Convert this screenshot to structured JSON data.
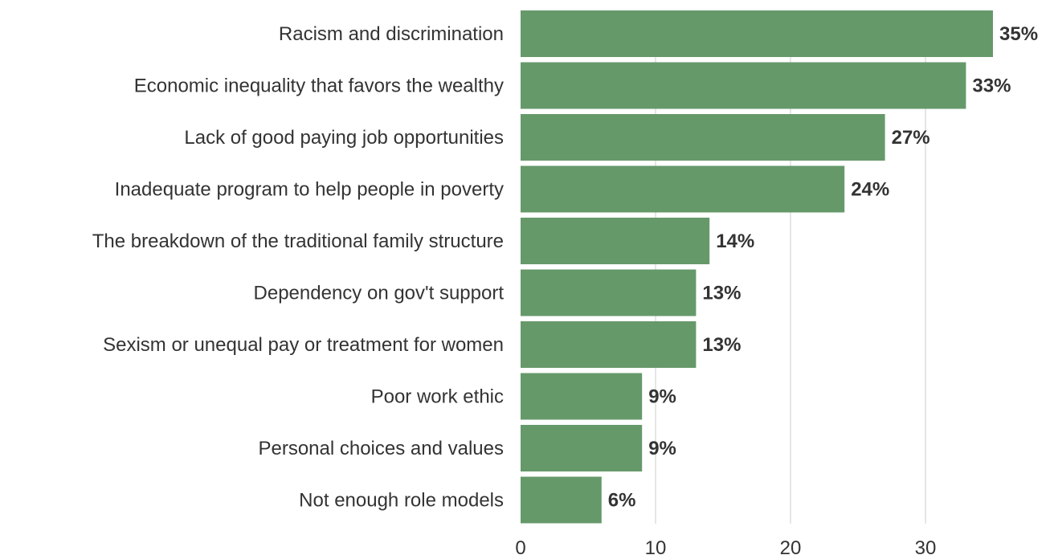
{
  "chart_data": {
    "type": "bar",
    "orientation": "horizontal",
    "categories": [
      "Racism and discrimination",
      "Economic inequality that favors the wealthy",
      "Lack of good paying job opportunities",
      "Inadequate program to help people in poverty",
      "The breakdown of the traditional family structure",
      "Dependency on gov't support",
      "Sexism or unequal pay or treatment for women",
      "Poor work ethic",
      "Personal choices and values",
      "Not enough role models"
    ],
    "values": [
      35,
      33,
      27,
      24,
      14,
      13,
      13,
      9,
      9,
      6
    ],
    "value_labels": [
      "35%",
      "33%",
      "27%",
      "24%",
      "14%",
      "13%",
      "13%",
      "9%",
      "9%",
      "6%"
    ],
    "x_ticks": [
      0,
      10,
      20,
      30
    ],
    "xlim": [
      0,
      36
    ],
    "grid": true,
    "bar_color": "#66996a",
    "title": "",
    "xlabel": "",
    "ylabel": ""
  }
}
